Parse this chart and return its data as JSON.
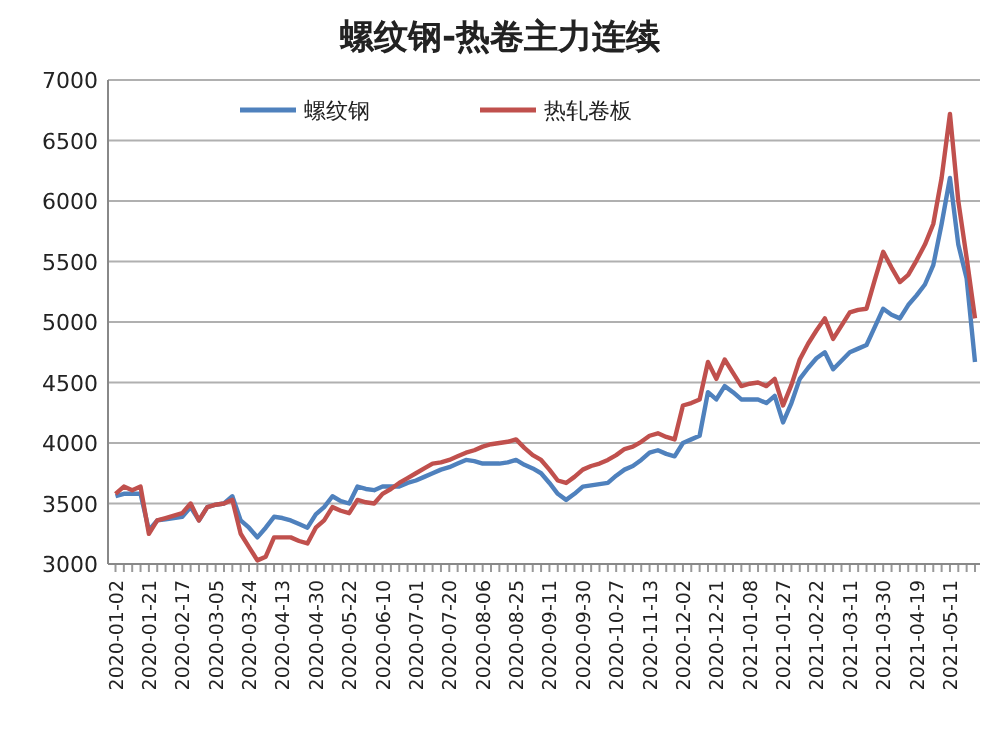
{
  "chart_data": {
    "type": "line",
    "title": "螺纹钢-热卷主力连续",
    "ylim": [
      3000,
      7000
    ],
    "yticks": [
      3000,
      3500,
      4000,
      4500,
      5000,
      5500,
      6000,
      6500,
      7000
    ],
    "categories": [
      "2020-01-02",
      null,
      null,
      null,
      "2020-01-21",
      null,
      null,
      null,
      "2020-02-17",
      null,
      null,
      null,
      "2020-03-05",
      null,
      null,
      null,
      "2020-03-24",
      null,
      null,
      null,
      "2020-04-13",
      null,
      null,
      null,
      "2020-04-30",
      null,
      null,
      null,
      "2020-05-22",
      null,
      null,
      null,
      "2020-06-10",
      null,
      null,
      null,
      "2020-07-01",
      null,
      null,
      null,
      "2020-07-20",
      null,
      null,
      null,
      "2020-08-06",
      null,
      null,
      null,
      "2020-08-25",
      null,
      null,
      null,
      "2020-09-11",
      null,
      null,
      null,
      "2020-09-30",
      null,
      null,
      null,
      "2020-10-27",
      null,
      null,
      null,
      "2020-11-13",
      null,
      null,
      null,
      "2020-12-02",
      null,
      null,
      null,
      "2020-12-21",
      null,
      null,
      null,
      "2021-01-08",
      null,
      null,
      null,
      "2021-01-27",
      null,
      null,
      null,
      "2021-02-22",
      null,
      null,
      null,
      "2021-03-11",
      null,
      null,
      null,
      "2021-03-30",
      null,
      null,
      null,
      "2021-04-19",
      null,
      null,
      null,
      "2021-05-11",
      null,
      null,
      null
    ],
    "series": [
      {
        "name": "螺纹钢",
        "color": "#4f81bd",
        "values": [
          3560,
          3580,
          3580,
          3580,
          3280,
          3360,
          3370,
          3380,
          3390,
          3470,
          3360,
          3470,
          3490,
          3500,
          3560,
          3360,
          3300,
          3220,
          3300,
          3390,
          3380,
          3360,
          3330,
          3300,
          3410,
          3470,
          3560,
          3520,
          3500,
          3640,
          3620,
          3610,
          3640,
          3640,
          3640,
          3670,
          3690,
          3720,
          3750,
          3780,
          3800,
          3830,
          3860,
          3850,
          3830,
          3830,
          3830,
          3840,
          3860,
          3820,
          3790,
          3750,
          3670,
          3580,
          3530,
          3580,
          3640,
          3650,
          3660,
          3670,
          3730,
          3780,
          3810,
          3860,
          3920,
          3940,
          3910,
          3890,
          4000,
          4030,
          4060,
          4420,
          4360,
          4470,
          4420,
          4360,
          4360,
          4360,
          4330,
          4390,
          4170,
          4330,
          4530,
          4620,
          4700,
          4750,
          4610,
          4680,
          4750,
          4780,
          4810,
          4960,
          5110,
          5060,
          5030,
          5140,
          5220,
          5310,
          5470,
          5810,
          6190,
          5640,
          5360,
          4670
        ]
      },
      {
        "name": "热轧卷板",
        "color": "#c0504d",
        "values": [
          3580,
          3640,
          3610,
          3640,
          3250,
          3360,
          3380,
          3400,
          3420,
          3500,
          3360,
          3470,
          3490,
          3500,
          3530,
          3250,
          3140,
          3030,
          3060,
          3220,
          3220,
          3220,
          3190,
          3170,
          3300,
          3360,
          3470,
          3440,
          3420,
          3530,
          3510,
          3500,
          3580,
          3620,
          3670,
          3710,
          3750,
          3790,
          3830,
          3840,
          3860,
          3890,
          3920,
          3940,
          3970,
          3990,
          4000,
          4010,
          4030,
          3960,
          3900,
          3860,
          3780,
          3690,
          3670,
          3720,
          3780,
          3810,
          3830,
          3860,
          3900,
          3950,
          3970,
          4010,
          4060,
          4080,
          4050,
          4030,
          4310,
          4330,
          4360,
          4670,
          4530,
          4690,
          4580,
          4470,
          4490,
          4500,
          4470,
          4530,
          4310,
          4480,
          4690,
          4820,
          4930,
          5030,
          4860,
          4970,
          5080,
          5100,
          5110,
          5350,
          5580,
          5450,
          5330,
          5390,
          5510,
          5640,
          5810,
          6190,
          6720,
          6000,
          5530,
          5030
        ]
      }
    ],
    "grid": "y",
    "legend": "top",
    "line_style": "solid",
    "marker": "none"
  }
}
